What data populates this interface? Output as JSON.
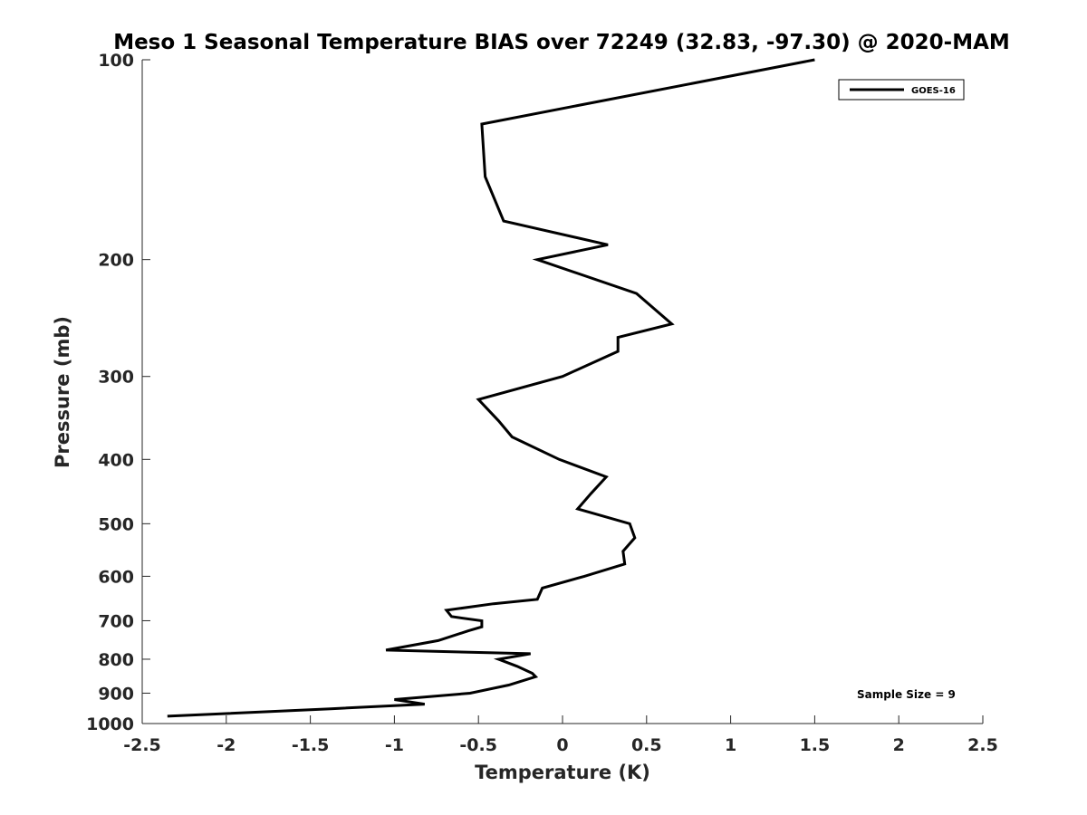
{
  "chart_data": {
    "type": "line",
    "title": "Meso 1 Seasonal Temperature BIAS over 72249 (32.83, -97.30) @ 2020-MAM",
    "xlabel": "Temperature (K)",
    "ylabel": "Pressure (mb)",
    "xlim": [
      -2.5,
      2.5
    ],
    "ylim": [
      100,
      1000
    ],
    "y_scale": "log",
    "y_reversed": true,
    "x_ticks": [
      -2.5,
      -2,
      -1.5,
      -1,
      -0.5,
      0,
      0.5,
      1,
      1.5,
      2,
      2.5
    ],
    "x_tick_labels": [
      "-2.5",
      "-2",
      "-1.5",
      "-1",
      "-0.5",
      "0",
      "0.5",
      "1",
      "1.5",
      "2",
      "2.5"
    ],
    "y_ticks": [
      100,
      200,
      300,
      400,
      500,
      600,
      700,
      800,
      900,
      1000
    ],
    "y_tick_labels": [
      "100",
      "200",
      "300",
      "400",
      "500",
      "600",
      "700",
      "800",
      "900",
      "1000"
    ],
    "grid": false,
    "legend_position": "top-right",
    "series": [
      {
        "name": "GOES-16",
        "color": "#000000",
        "points": [
          {
            "t": 1.5,
            "p": 100
          },
          {
            "t": -0.48,
            "p": 125
          },
          {
            "t": -0.46,
            "p": 150
          },
          {
            "t": -0.35,
            "p": 175
          },
          {
            "t": 0.27,
            "p": 190
          },
          {
            "t": -0.15,
            "p": 200
          },
          {
            "t": 0.44,
            "p": 225
          },
          {
            "t": 0.65,
            "p": 250
          },
          {
            "t": 0.33,
            "p": 262
          },
          {
            "t": 0.33,
            "p": 275
          },
          {
            "t": 0.0,
            "p": 300
          },
          {
            "t": -0.5,
            "p": 325
          },
          {
            "t": -0.38,
            "p": 350
          },
          {
            "t": -0.3,
            "p": 370
          },
          {
            "t": -0.02,
            "p": 400
          },
          {
            "t": 0.26,
            "p": 425
          },
          {
            "t": 0.17,
            "p": 450
          },
          {
            "t": 0.09,
            "p": 475
          },
          {
            "t": 0.4,
            "p": 500
          },
          {
            "t": 0.43,
            "p": 525
          },
          {
            "t": 0.36,
            "p": 550
          },
          {
            "t": 0.37,
            "p": 575
          },
          {
            "t": 0.13,
            "p": 600
          },
          {
            "t": -0.12,
            "p": 625
          },
          {
            "t": -0.15,
            "p": 650
          },
          {
            "t": -0.41,
            "p": 660
          },
          {
            "t": -0.69,
            "p": 675
          },
          {
            "t": -0.66,
            "p": 690
          },
          {
            "t": -0.48,
            "p": 700
          },
          {
            "t": -0.48,
            "p": 715
          },
          {
            "t": -0.56,
            "p": 725
          },
          {
            "t": -0.74,
            "p": 750
          },
          {
            "t": -1.05,
            "p": 775
          },
          {
            "t": -0.19,
            "p": 785
          },
          {
            "t": -0.38,
            "p": 800
          },
          {
            "t": -0.27,
            "p": 820
          },
          {
            "t": -0.18,
            "p": 840
          },
          {
            "t": -0.16,
            "p": 850
          },
          {
            "t": -0.32,
            "p": 875
          },
          {
            "t": -0.55,
            "p": 900
          },
          {
            "t": -1.0,
            "p": 920
          },
          {
            "t": -0.82,
            "p": 935
          },
          {
            "t": -1.38,
            "p": 950
          },
          {
            "t": -2.35,
            "p": 975
          }
        ]
      }
    ],
    "annotations": [
      {
        "text": "Sample Size = 9"
      }
    ]
  }
}
